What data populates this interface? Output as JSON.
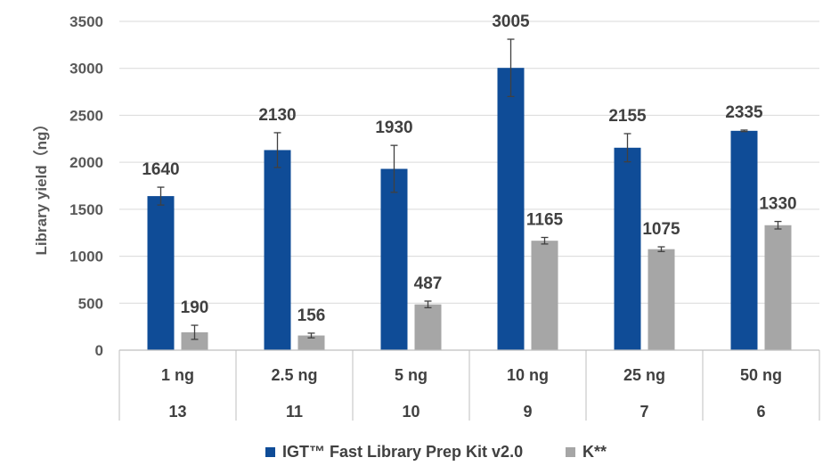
{
  "chart_data": {
    "type": "bar",
    "title": "",
    "ylabel": "Library yield（ng）",
    "ylim": [
      0,
      3500
    ],
    "ytick_step": 500,
    "grid": true,
    "legend_position": "bottom",
    "categories": [
      "1 ng",
      "2.5 ng",
      "5 ng",
      "10 ng",
      "25 ng",
      "50 ng"
    ],
    "categories_row2": [
      "13",
      "11",
      "10",
      "9",
      "7",
      "6"
    ],
    "series": [
      {
        "name": "IGT™ Fast Library Prep Kit v2.0",
        "color": "#0f4c97",
        "values": [
          1640,
          2130,
          1930,
          3005,
          2155,
          2335
        ],
        "error": [
          95,
          185,
          250,
          305,
          150,
          8
        ]
      },
      {
        "name": "K**",
        "color": "#a6a6a6",
        "values": [
          190,
          156,
          487,
          1165,
          1075,
          1330
        ],
        "error": [
          75,
          25,
          35,
          35,
          25,
          40
        ]
      }
    ]
  }
}
